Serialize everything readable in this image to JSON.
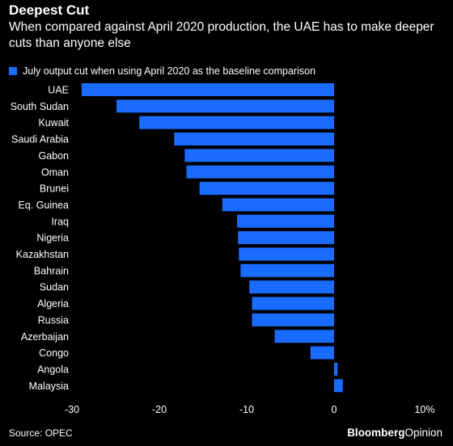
{
  "header": {
    "title": "Deepest Cut",
    "subtitle": "When compared against April 2020 production, the UAE has to make deeper cuts than anyone else"
  },
  "footer": {
    "source": "Source: OPEC",
    "brand_bold": "Bloomberg",
    "brand_regular": "Opinion"
  },
  "colors": {
    "bar": "#1a6bff",
    "background": "#000000",
    "text": "#ffffff"
  },
  "chart_data": {
    "type": "bar",
    "orientation": "horizontal",
    "legend": "July output cut when using April 2020 as the baseline comparison",
    "legend_position": "top-left",
    "categories": [
      "UAE",
      "South Sudan",
      "Kuwait",
      "Saudi Arabia",
      "Gabon",
      "Oman",
      "Brunei",
      "Eq. Guinea",
      "Iraq",
      "Nigeria",
      "Kazakhstan",
      "Bahrain",
      "Sudan",
      "Algeria",
      "Russia",
      "Azerbaijan",
      "Congo",
      "Angola",
      "Malaysia"
    ],
    "values": [
      -28.9,
      -24.9,
      -22.3,
      -18.3,
      -17.1,
      -16.9,
      -15.4,
      -12.8,
      -11.1,
      -11.0,
      -10.9,
      -10.7,
      -9.7,
      -9.4,
      -9.4,
      -6.8,
      -2.7,
      0.4,
      1.0
    ],
    "xlim": [
      -30,
      10
    ],
    "xticks": [
      -30,
      -20,
      -10,
      0,
      10
    ],
    "xtick_labels": [
      "-30",
      "-20",
      "-10",
      "0",
      "10%"
    ],
    "grid": false
  }
}
